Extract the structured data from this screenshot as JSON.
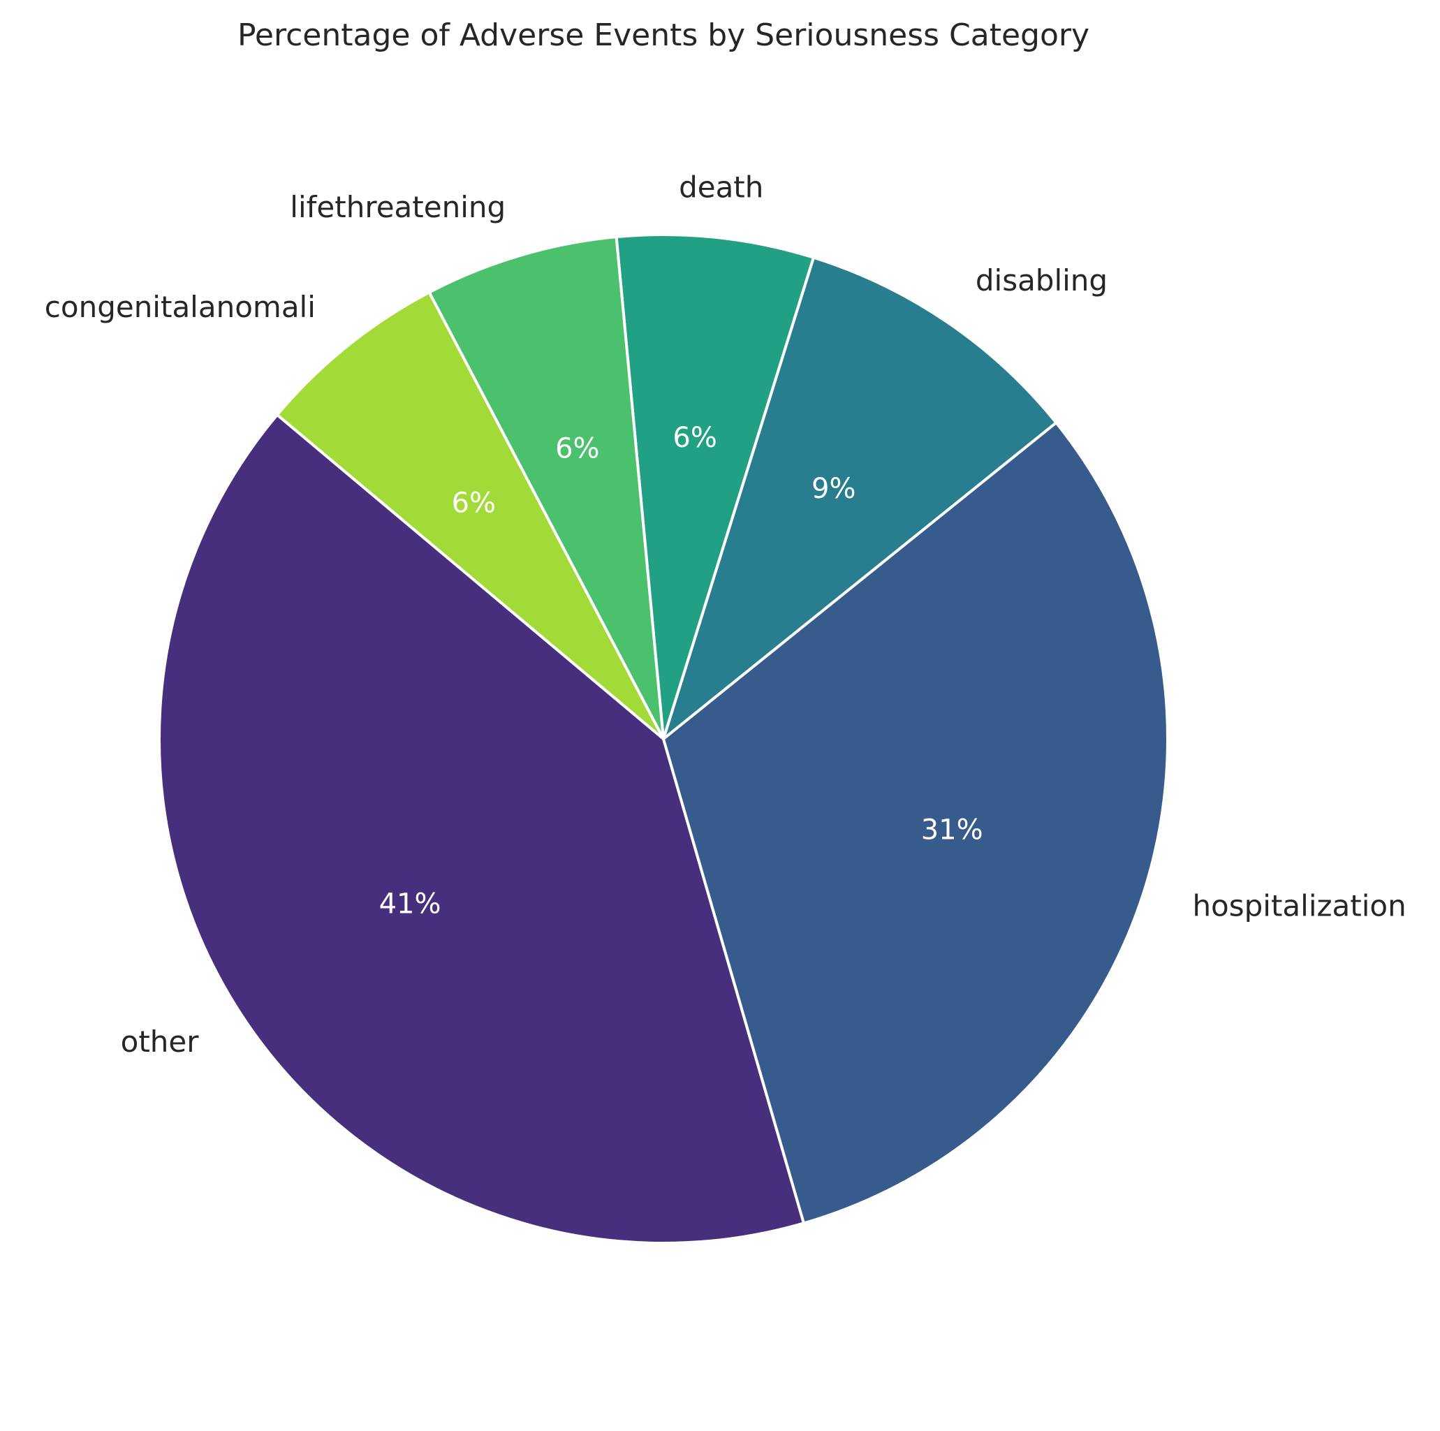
{
  "chart_data": {
    "type": "pie",
    "title": "Percentage of Adverse Events by Seriousness Category",
    "categories": [
      "other",
      "hospitalization",
      "disabling",
      "death",
      "lifethreatening",
      "congenitalanomali"
    ],
    "values": [
      40.6,
      31.3,
      9.4,
      6.3,
      6.2,
      6.2
    ],
    "value_labels": [
      "41%",
      "31%",
      "9%",
      "6%",
      "6%",
      "6%"
    ],
    "colors": [
      "#482f7d",
      "#375b8d",
      "#287d8e",
      "#21a083",
      "#4bc16d",
      "#a2da37"
    ],
    "start_angle_deg": 140,
    "direction": "counterclockwise",
    "legend": "none"
  }
}
